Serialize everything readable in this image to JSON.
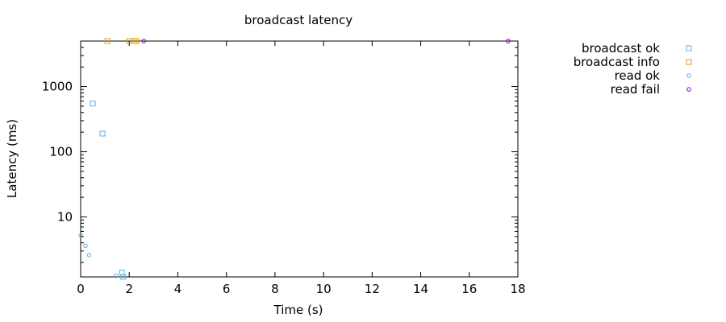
{
  "chart_data": {
    "type": "scatter",
    "title": "broadcast latency",
    "xlabel": "Time (s)",
    "ylabel": "Latency (ms)",
    "xlim": [
      0,
      18
    ],
    "ylim": [
      1.2,
      5000
    ],
    "yscale": "log",
    "x_ticks": [
      0,
      2,
      4,
      6,
      8,
      10,
      12,
      14,
      16,
      18
    ],
    "y_ticks": [
      10,
      100,
      1000
    ],
    "legend_position": "outside-right-top",
    "series": [
      {
        "name": "broadcast ok",
        "marker": "square",
        "color": "#56B4E9",
        "points": [
          {
            "x": 0.5,
            "y": 550
          },
          {
            "x": 0.9,
            "y": 190
          },
          {
            "x": 1.7,
            "y": 1.4
          },
          {
            "x": 1.75,
            "y": 1.2
          }
        ]
      },
      {
        "name": "broadcast info",
        "marker": "square",
        "color": "#E69F00",
        "points": [
          {
            "x": 1.1,
            "y": 5000
          },
          {
            "x": 2.0,
            "y": 5000
          },
          {
            "x": 2.2,
            "y": 5000
          },
          {
            "x": 2.3,
            "y": 5000
          }
        ]
      },
      {
        "name": "read ok",
        "marker": "circle",
        "color": "#56B4E9",
        "points": [
          {
            "x": 0.0,
            "y": 5.2
          },
          {
            "x": 0.2,
            "y": 3.6
          },
          {
            "x": 0.35,
            "y": 2.6
          },
          {
            "x": 1.45,
            "y": 1.25
          }
        ]
      },
      {
        "name": "read fail",
        "marker": "circle",
        "color": "#9400D3",
        "points": [
          {
            "x": 2.6,
            "y": 5000
          },
          {
            "x": 17.6,
            "y": 5000
          }
        ]
      }
    ]
  }
}
